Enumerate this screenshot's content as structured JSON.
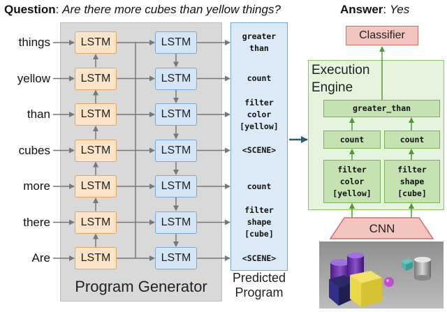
{
  "question": {
    "label": "Question",
    "separator": ":",
    "text": "Are there more cubes than yellow things?"
  },
  "answer": {
    "label": "Answer",
    "separator": ":",
    "text": "Yes"
  },
  "program_generator": {
    "label": "Program Generator",
    "words": [
      "things",
      "yellow",
      "than",
      "cubes",
      "more",
      "there",
      "Are"
    ],
    "encoder_label": "LSTM",
    "decoder_label": "LSTM"
  },
  "predicted_program": {
    "label_line1": "Predicted",
    "label_line2": "Program",
    "tokens": [
      [
        "greater",
        "than"
      ],
      [
        "count"
      ],
      [
        "filter",
        "color",
        "[yellow]"
      ],
      [
        "<SCENE>"
      ],
      [
        "count"
      ],
      [
        "filter",
        "shape",
        "[cube]"
      ],
      [
        "<SCENE>"
      ]
    ]
  },
  "execution_engine": {
    "title_line1": "Execution",
    "title_line2": "Engine",
    "greater_than": "greater_than",
    "count_left": "count",
    "count_right": "count",
    "filter_left": [
      "filter",
      "color",
      "[yellow]"
    ],
    "filter_right": [
      "filter",
      "shape",
      "[cube]"
    ]
  },
  "classifier": {
    "label": "Classifier"
  },
  "cnn": {
    "label": "CNN"
  },
  "colors": {
    "encoder_fill": "#fde3c8",
    "decoder_fill": "#d4e5f5",
    "module_fill": "#c6e2b2",
    "classifier_fill": "#f3c4c0",
    "arrow_gray": "#777777",
    "arrow_green": "#4f9a32",
    "arrow_teal": "#2c5f6e"
  }
}
